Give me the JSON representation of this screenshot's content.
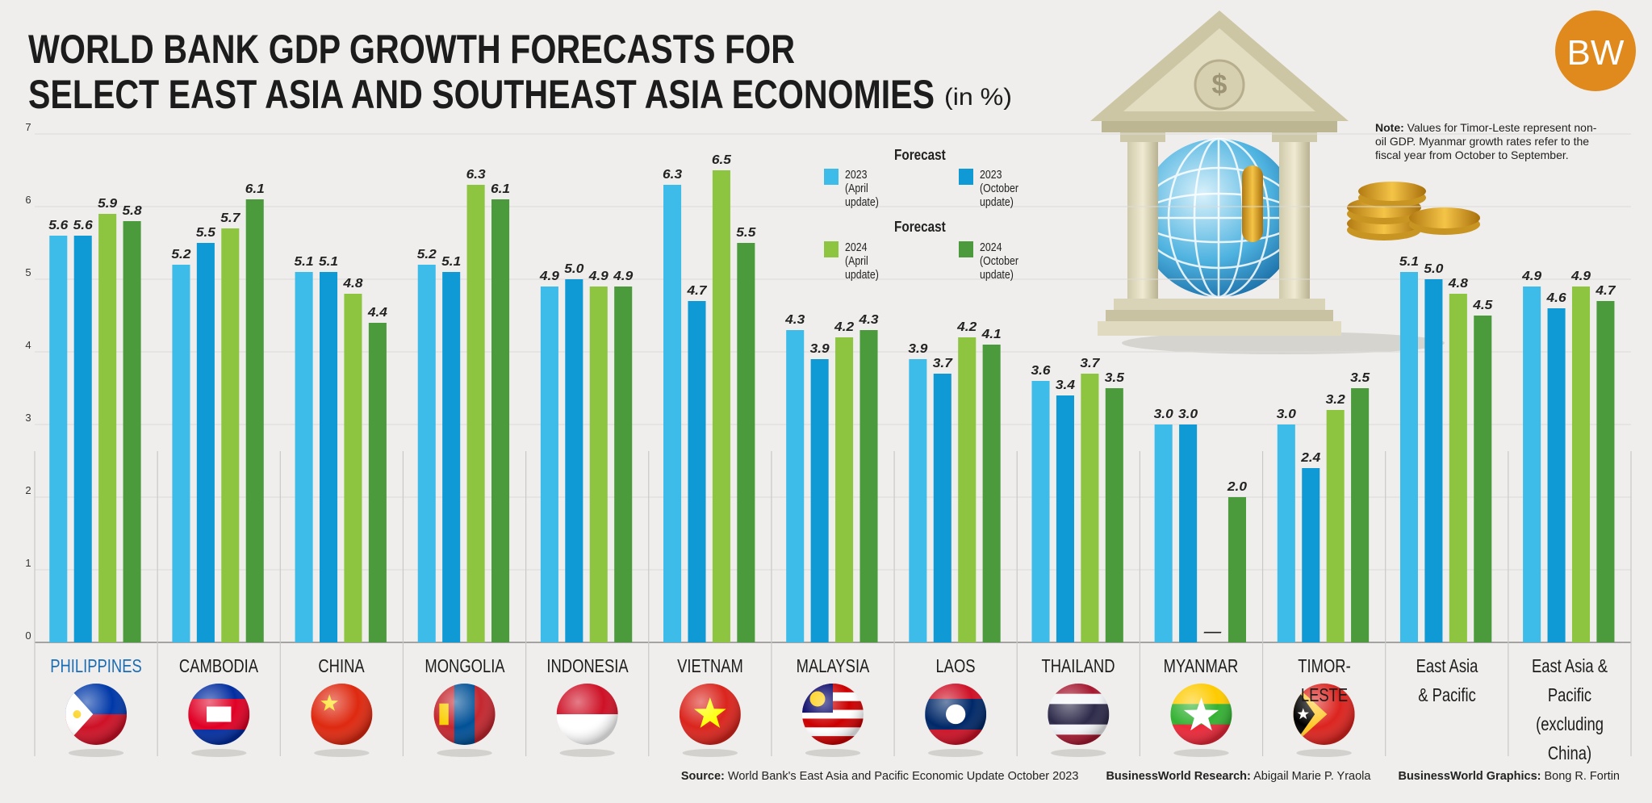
{
  "chart_data": {
    "type": "bar",
    "title": [
      "WORLD BANK GDP GROWTH FORECASTS FOR",
      "SELECT EAST ASIA AND SOUTHEAST ASIA ECONOMIES"
    ],
    "subtitle": "(in %)",
    "logo": "BW",
    "categories": [
      "PHILIPPINES",
      "CAMBODIA",
      "CHINA",
      "MONGOLIA",
      "INDONESIA",
      "VIETNAM",
      "MALAYSIA",
      "LAOS",
      "THAILAND",
      "MYANMAR",
      "TIMOR-LESTE",
      "East Asia\n& Pacific",
      "East Asia & Pacific\n(excluding China)"
    ],
    "highlight_category": 0,
    "highlight_color": "#1a6db5",
    "legend_titles": [
      "Forecast",
      "Forecast"
    ],
    "series": [
      {
        "name": "2023\n(April update)",
        "color": "#3dbbe9",
        "values": [
          5.6,
          5.2,
          5.1,
          5.2,
          4.9,
          6.3,
          4.3,
          3.9,
          3.6,
          3.0,
          3.0,
          5.1,
          4.9
        ],
        "value_labels": [
          "5.6",
          "5.2",
          "5.1",
          "5.2",
          "4.9",
          "6.3",
          "4.3",
          "3.9",
          "3.6",
          "3.0",
          "3.0",
          "5.1",
          "4.9"
        ]
      },
      {
        "name": "2023\n(October update)",
        "color": "#0f9ad5",
        "values": [
          5.6,
          5.5,
          5.1,
          5.1,
          5.0,
          4.7,
          3.9,
          3.7,
          3.4,
          3.0,
          2.4,
          5.0,
          4.6
        ],
        "value_labels": [
          "5.6",
          "5.5",
          "5.1",
          "5.1",
          "5.0",
          "4.7",
          "3.9",
          "3.7",
          "3.4",
          "3.0",
          "2.4",
          "5.0",
          "4.6"
        ]
      },
      {
        "name": "2024\n(April update)",
        "color": "#8dc440",
        "values": [
          5.9,
          5.7,
          4.8,
          6.3,
          4.9,
          6.5,
          4.2,
          4.2,
          3.7,
          null,
          3.2,
          4.8,
          4.9
        ],
        "value_labels": [
          "5.9",
          "5.7",
          "4.8",
          "6.3",
          "4.9",
          "6.5",
          "4.2",
          "4.2",
          "3.7",
          "–",
          "3.2",
          "4.8",
          "4.9"
        ]
      },
      {
        "name": "2024\n(October update)",
        "color": "#4b9b3d",
        "values": [
          5.8,
          6.1,
          4.4,
          6.1,
          4.9,
          5.5,
          4.3,
          4.1,
          3.5,
          2.0,
          3.5,
          4.5,
          4.7
        ],
        "value_labels": [
          "5.8",
          "6.1",
          "4.4",
          "6.1",
          "4.9",
          "5.5",
          "4.3",
          "4.1",
          "3.5",
          "2.0",
          "3.5",
          "4.5",
          "4.7"
        ]
      }
    ],
    "ylim": [
      0,
      7
    ],
    "yticks": [
      0,
      1,
      2,
      3,
      4,
      5,
      6,
      7
    ],
    "grid": true,
    "note": {
      "label": "Note:",
      "text": "Values for Timor-Leste represent non-oil GDP. Myanmar growth rates refer to the fiscal year from October to September."
    },
    "footer": [
      {
        "label": "Source:",
        "text": "World Bank's East Asia and Pacific Economic Update October 2023"
      },
      {
        "label": "BusinessWorld Research:",
        "text": "Abigail Marie P. Yraola"
      },
      {
        "label": "BusinessWorld Graphics:",
        "text": "Bong R. Fortin"
      }
    ]
  }
}
